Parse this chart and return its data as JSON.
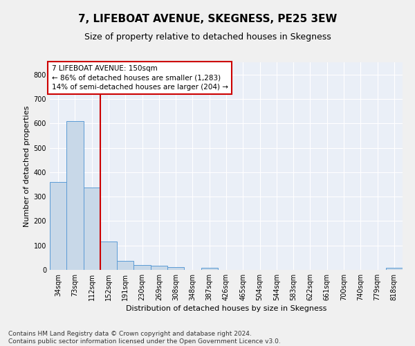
{
  "title": "7, LIFEBOAT AVENUE, SKEGNESS, PE25 3EW",
  "subtitle": "Size of property relative to detached houses in Skegness",
  "xlabel": "Distribution of detached houses by size in Skegness",
  "ylabel": "Number of detached properties",
  "bar_color": "#c8d8e8",
  "bar_edge_color": "#5b9bd5",
  "bar_categories": [
    "34sqm",
    "73sqm",
    "112sqm",
    "152sqm",
    "191sqm",
    "230sqm",
    "269sqm",
    "308sqm",
    "348sqm",
    "387sqm",
    "426sqm",
    "465sqm",
    "504sqm",
    "544sqm",
    "583sqm",
    "622sqm",
    "661sqm",
    "700sqm",
    "740sqm",
    "779sqm",
    "818sqm"
  ],
  "bar_values": [
    360,
    610,
    338,
    115,
    37,
    20,
    16,
    11,
    0,
    9,
    0,
    0,
    0,
    0,
    0,
    0,
    0,
    0,
    0,
    0,
    8
  ],
  "ylim": [
    0,
    850
  ],
  "yticks": [
    0,
    100,
    200,
    300,
    400,
    500,
    600,
    700,
    800
  ],
  "annotation_box_text": "7 LIFEBOAT AVENUE: 150sqm\n← 86% of detached houses are smaller (1,283)\n14% of semi-detached houses are larger (204) →",
  "vline_x_idx": 2.5,
  "vline_color": "#cc0000",
  "box_color": "#cc0000",
  "footer_text": "Contains HM Land Registry data © Crown copyright and database right 2024.\nContains public sector information licensed under the Open Government Licence v3.0.",
  "bg_color": "#eaeff7",
  "grid_color": "#ffffff",
  "fig_bg_color": "#f0f0f0",
  "title_fontsize": 11,
  "subtitle_fontsize": 9,
  "annotation_fontsize": 7.5,
  "ylabel_fontsize": 8,
  "xlabel_fontsize": 8,
  "footer_fontsize": 6.5,
  "tick_fontsize": 7
}
